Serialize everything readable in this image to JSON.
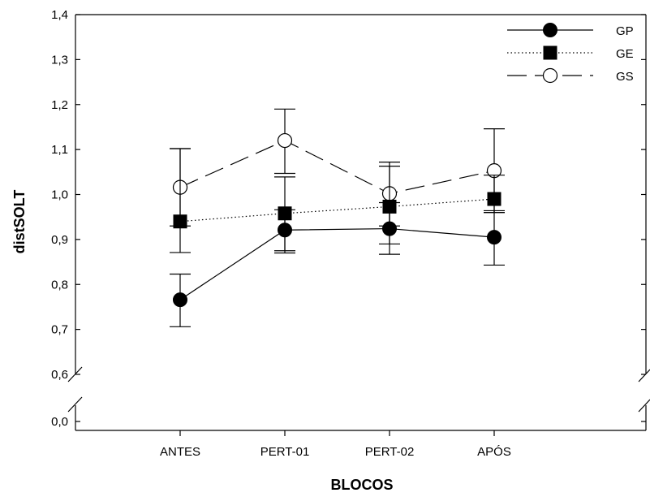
{
  "chart_data": {
    "type": "line",
    "xlabel": "BLOCOS",
    "ylabel": "distSOLT",
    "categories": [
      "ANTES",
      "PERT-01",
      "PERT-02",
      "APÓS"
    ],
    "y_axis": {
      "broken": true,
      "lower_ticks": [
        "0,0"
      ],
      "upper_range": [
        0.6,
        1.4
      ],
      "upper_ticks": [
        "0,6",
        "0,7",
        "0,8",
        "0,9",
        "1,0",
        "1,1",
        "1,2",
        "1,3",
        "1,4"
      ]
    },
    "legend_position": "top-right",
    "series": [
      {
        "name": "GP",
        "marker": "filled-circle",
        "line": "solid",
        "values": [
          0.766,
          0.921,
          0.924,
          0.905
        ],
        "err_low": [
          0.706,
          0.875,
          0.867,
          0.843
        ],
        "err_high": [
          0.823,
          0.966,
          0.982,
          0.964
        ]
      },
      {
        "name": "GE",
        "marker": "filled-square",
        "line": "dotted",
        "values": [
          0.94,
          0.958,
          0.973,
          0.99
        ],
        "err_low": [
          0.871,
          0.87,
          0.89,
          0.96
        ],
        "err_high": [
          1.102,
          1.039,
          1.063,
          1.043
        ]
      },
      {
        "name": "GS",
        "marker": "open-circle",
        "line": "dashed",
        "values": [
          1.016,
          1.12,
          1.002,
          1.053
        ],
        "err_low": [
          0.93,
          1.047,
          0.93,
          0.96
        ],
        "err_high": [
          1.102,
          1.19,
          1.072,
          1.146
        ]
      }
    ]
  }
}
